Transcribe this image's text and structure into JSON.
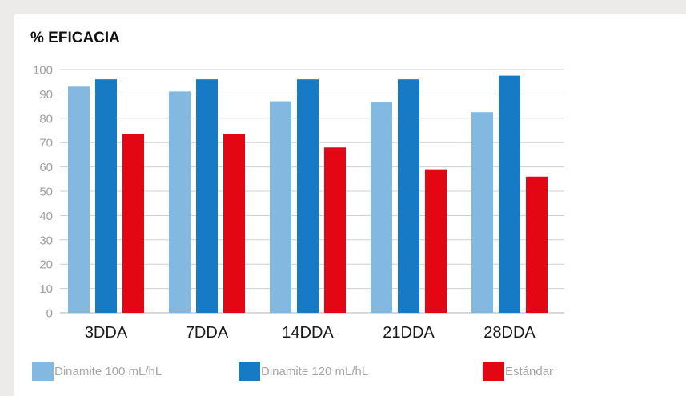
{
  "chart_data": {
    "type": "bar",
    "title": "% EFICACIA",
    "categories": [
      "3DDA",
      "7DDA",
      "14DDA",
      "21DDA",
      "28DDA"
    ],
    "series": [
      {
        "name": "Dinamite 100 mL/hL",
        "color": "#83b8e1",
        "values": [
          93,
          91,
          87,
          86.5,
          82.5
        ]
      },
      {
        "name": "Dinamite 120 mL/hL",
        "color": "#167bc4",
        "values": [
          96,
          96,
          96,
          96,
          97.5
        ]
      },
      {
        "name": "Estándar",
        "color": "#e30613",
        "values": [
          73.5,
          73.5,
          68,
          59,
          56
        ]
      }
    ],
    "ylim": [
      0,
      100
    ],
    "yticks": [
      "0",
      "10",
      "20",
      "30",
      "40",
      "50",
      "60",
      "70",
      "80",
      "90",
      "100"
    ],
    "xlabel": "",
    "ylabel": "",
    "grid": true,
    "legend_position": "bottom"
  }
}
